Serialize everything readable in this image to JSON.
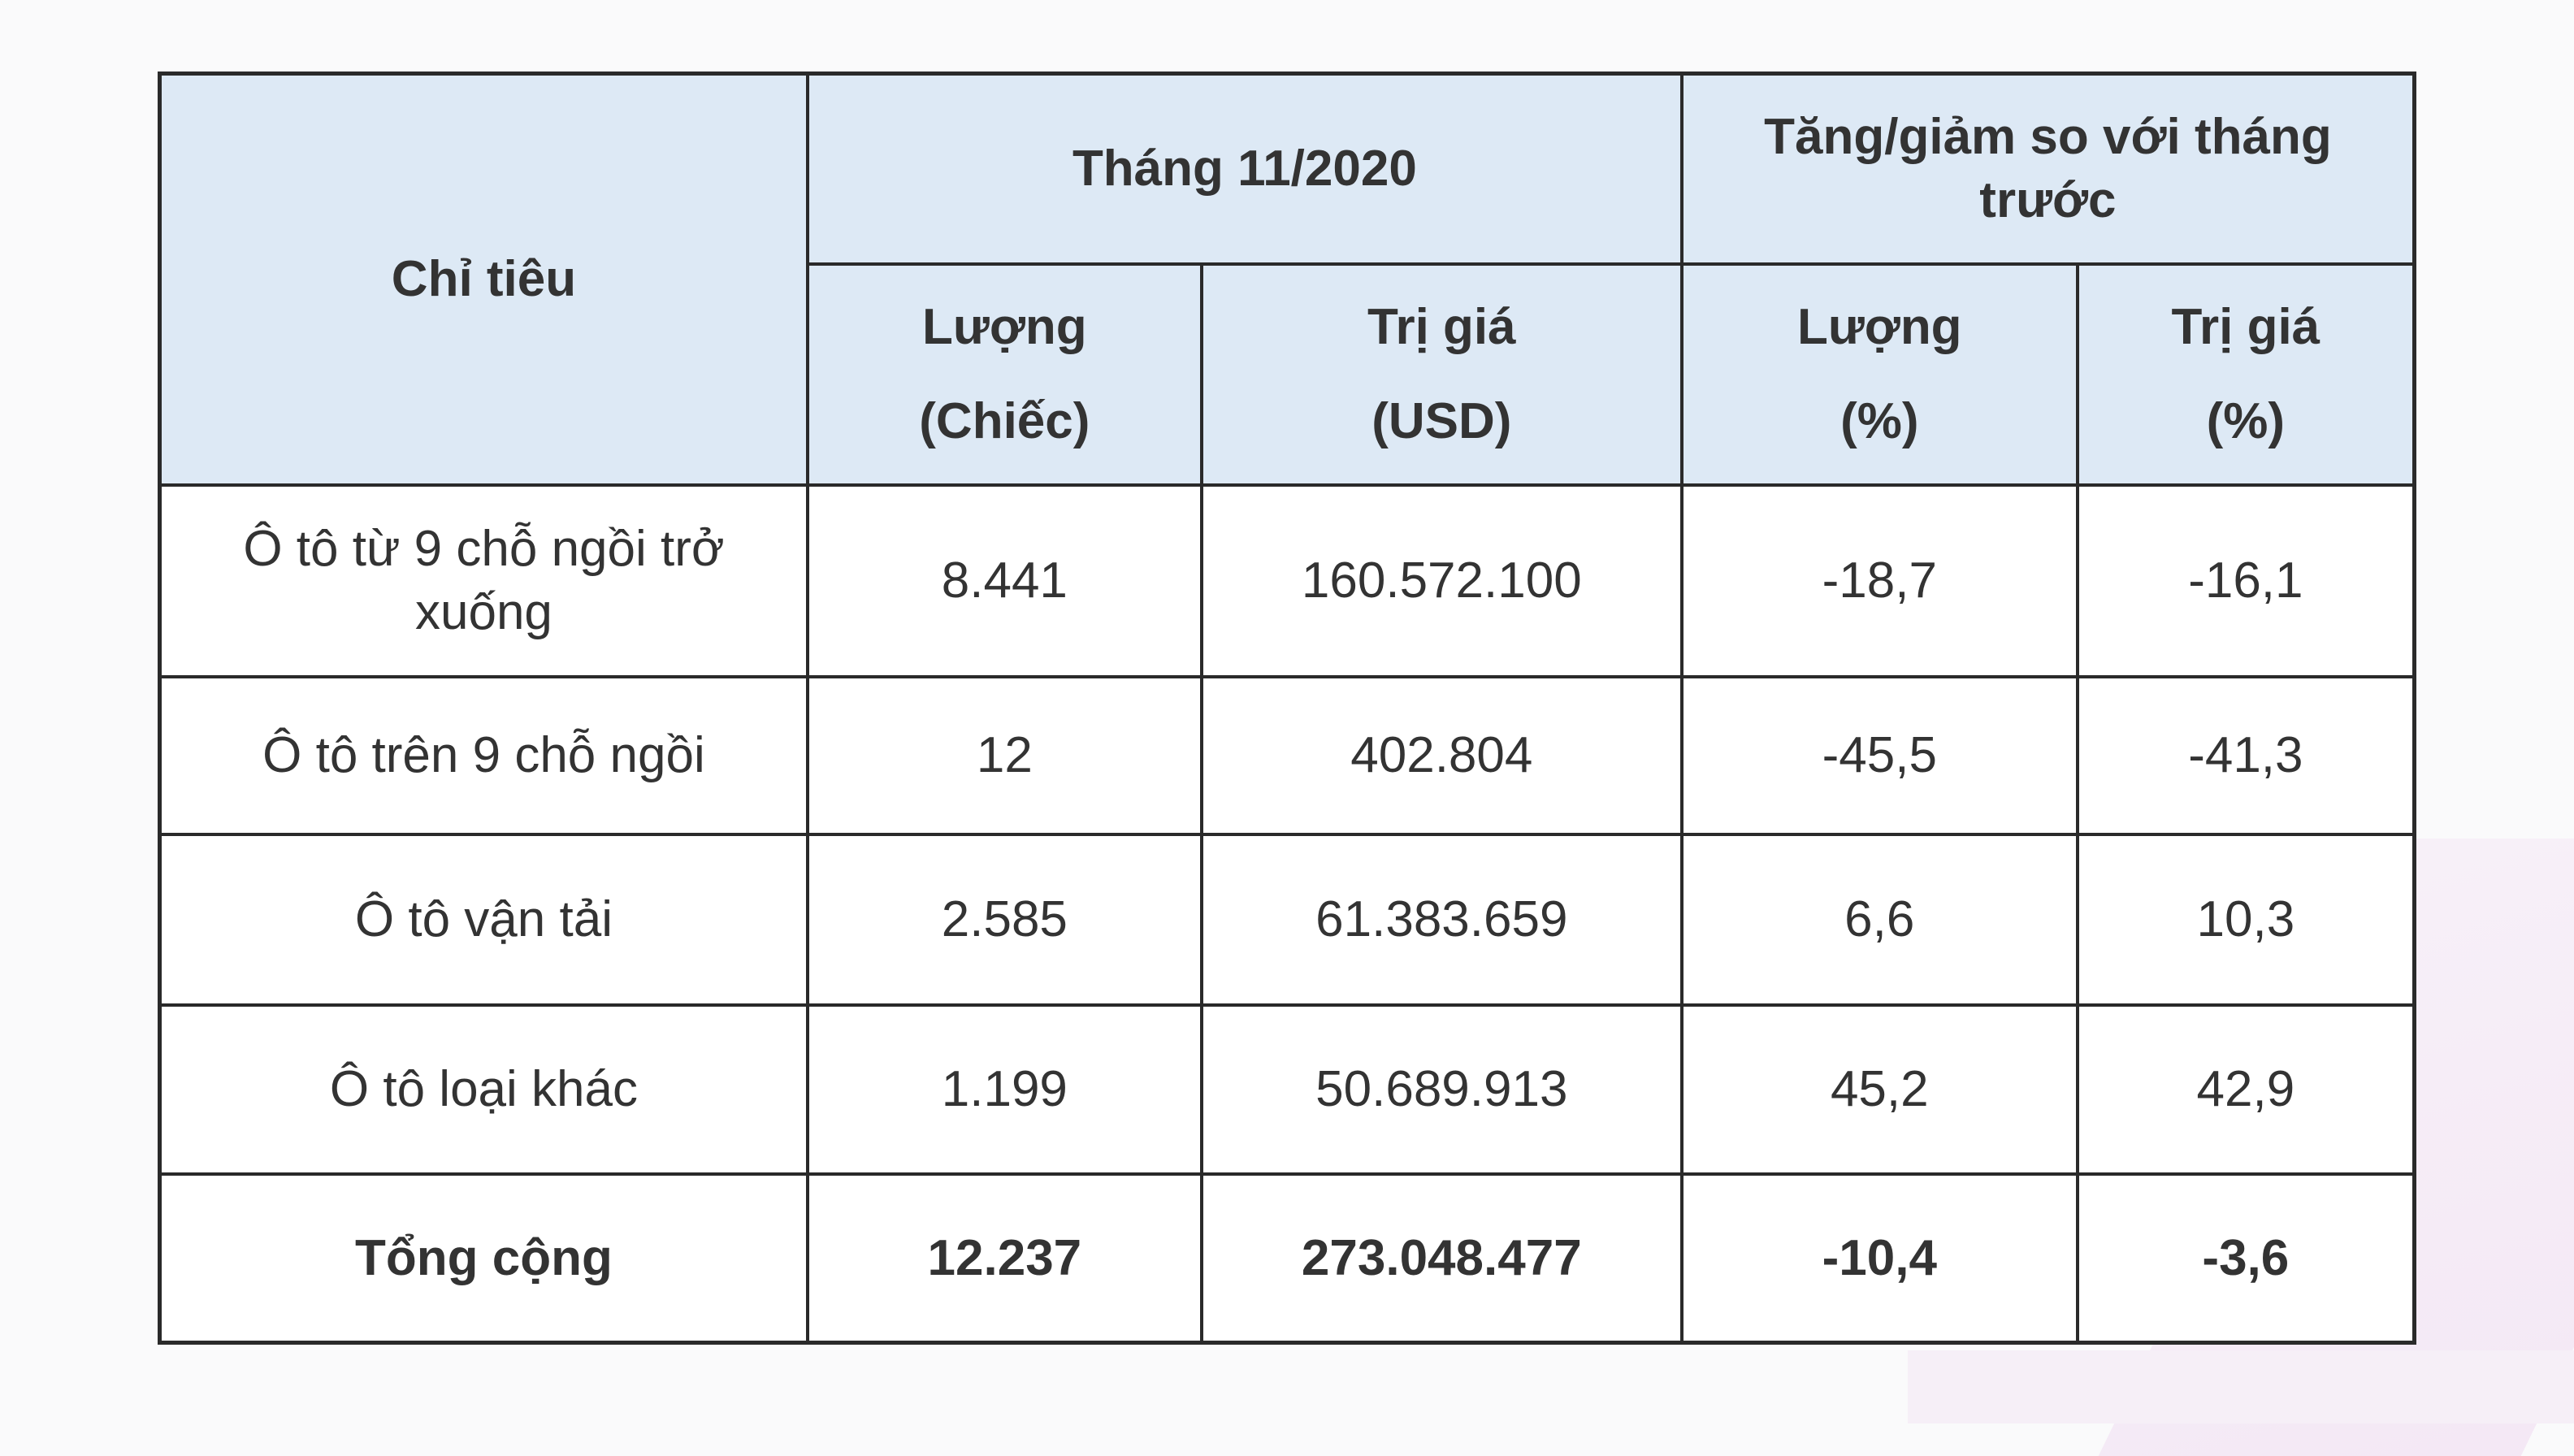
{
  "table": {
    "header": {
      "indicator": "Chỉ tiêu",
      "group_month": "Tháng 11/2020",
      "group_change": "Tăng/giảm so với tháng trước",
      "month_qty": "Lượng",
      "month_qty_unit": "(Chiếc)",
      "month_val": "Trị giá",
      "month_val_unit": "(USD)",
      "change_qty": "Lượng",
      "change_qty_unit": "(%)",
      "change_val": "Trị giá",
      "change_val_unit": "(%)"
    },
    "rows": [
      {
        "label": "Ô tô từ 9 chỗ ngồi trở xuống",
        "qty": "8.441",
        "value": "160.572.100",
        "qty_change": "-18,7",
        "value_change": "-16,1"
      },
      {
        "label": "Ô tô trên 9 chỗ ngồi",
        "qty": "12",
        "value": "402.804",
        "qty_change": "-45,5",
        "value_change": "-41,3"
      },
      {
        "label": "Ô tô vận tải",
        "qty": "2.585",
        "value": "61.383.659",
        "qty_change": "6,6",
        "value_change": "10,3"
      },
      {
        "label": "Ô tô loại khác",
        "qty": "1.199",
        "value": "50.689.913",
        "qty_change": "45,2",
        "value_change": "42,9"
      }
    ],
    "total": {
      "label": "Tổng cộng",
      "qty": "12.237",
      "value": "273.048.477",
      "qty_change": "-10,4",
      "value_change": "-3,6"
    }
  },
  "colors": {
    "header_bg": "#dde9f5",
    "border": "#2a2a2a",
    "text": "#333333",
    "page_bg": "#fafafb"
  }
}
